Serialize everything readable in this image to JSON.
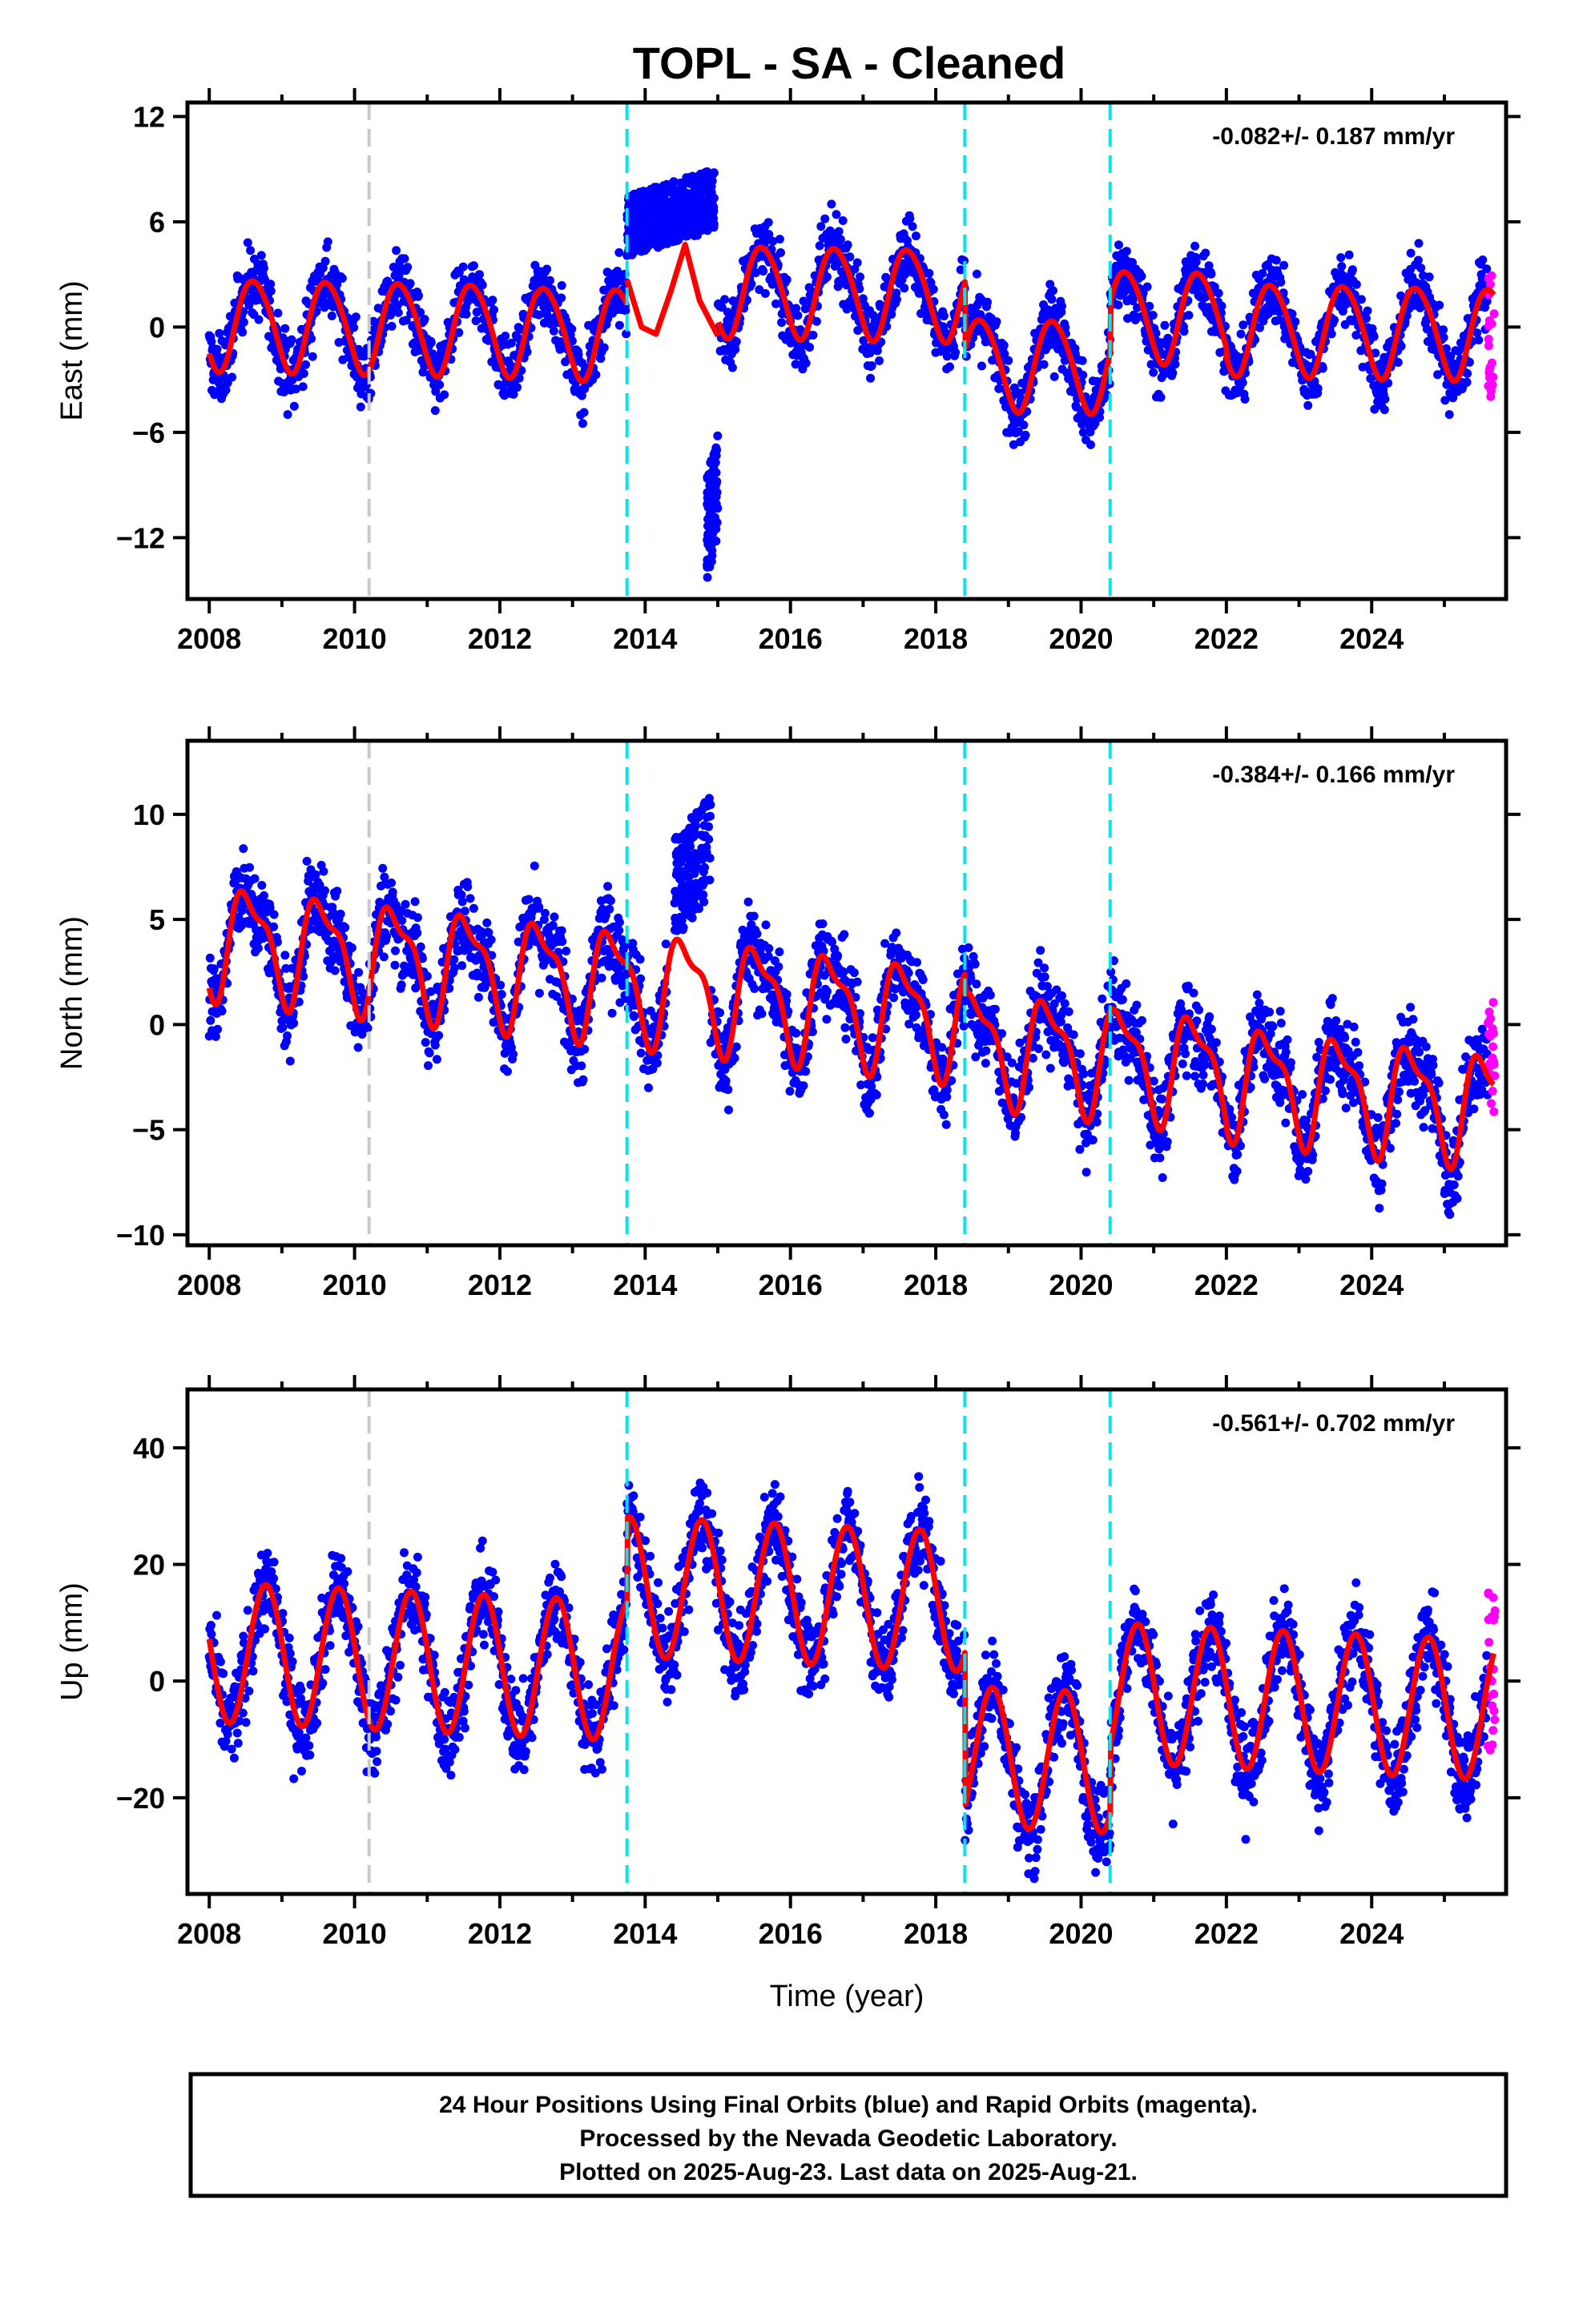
{
  "title": "TOPL  - SA - Cleaned",
  "footer": {
    "lines": [
      "24 Hour Positions Using Final Orbits (blue) and Rapid Orbits (magenta).",
      "Processed by the Nevada Geodetic Laboratory.",
      "Plotted on 2025-Aug-23. Last data on 2025-Aug-21."
    ]
  },
  "colors": {
    "final": "#0000ff",
    "rapid": "#ff00ff",
    "model": "#ff0000",
    "equipment_change": "#c8c8c8",
    "event": "#00e5ee"
  },
  "chart_data": [
    {
      "type": "scatter",
      "name": "east",
      "ylabel": "East (mm)",
      "xlabel": "",
      "rate": "-0.082+/- 0.187 mm/yr",
      "xlim": [
        2007.7,
        2025.85
      ],
      "ylim": [
        -15.5,
        12.8
      ],
      "yticks": [
        -12,
        -6,
        0,
        6,
        12
      ],
      "yticklabels": [
        "−12",
        "−6",
        "0",
        "6",
        "12"
      ],
      "xticks": [
        2008,
        2010,
        2012,
        2014,
        2016,
        2018,
        2020,
        2022,
        2024
      ],
      "xticklabels": [
        "2008",
        "2010",
        "2012",
        "2014",
        "2016",
        "2018",
        "2020",
        "2022",
        "2024"
      ],
      "grey_lines": [
        2010.2
      ],
      "cyan_lines": [
        2013.75,
        2018.4,
        2020.4
      ],
      "model": {
        "amplitude": 2.6,
        "phase_year": 0.62,
        "semiannual": 0.25,
        "trend": -0.082,
        "ref_year": 2016.8,
        "offsets": [
          [
            2008.0,
            -0.5
          ],
          [
            2012.5,
            -0.6
          ],
          [
            2013.75,
            2.0
          ],
          [
            2018.4,
            -1.9
          ],
          [
            2020.4,
            1.0
          ],
          [
            2022.0,
            0.4
          ]
        ]
      },
      "gap": [
        2013.75,
        2015.0
      ],
      "gap_curve": [
        [
          2013.75,
          2.7
        ],
        [
          2013.95,
          0.0
        ],
        [
          2014.15,
          -0.4
        ],
        [
          2014.35,
          2.0
        ],
        [
          2014.55,
          4.7
        ],
        [
          2014.75,
          1.5
        ],
        [
          2015.0,
          -0.5
        ]
      ],
      "clusters": [
        {
          "x": [
            2013.75,
            2014.95
          ],
          "y": [
            4.0,
            9.0
          ],
          "n": 520
        },
        {
          "x": [
            2014.85,
            2015.0
          ],
          "y": [
            -14.5,
            -6.0
          ],
          "n": 90
        }
      ],
      "noise": 1.4,
      "rapid": {
        "x": [
          2025.6,
          2025.7
        ],
        "y": [
          -4.0,
          3.0
        ]
      }
    },
    {
      "type": "scatter",
      "name": "north",
      "ylabel": "North (mm)",
      "xlabel": "",
      "rate": "-0.384+/- 0.166 mm/yr",
      "xlim": [
        2007.7,
        2025.85
      ],
      "ylim": [
        -10.5,
        13.5
      ],
      "yticks": [
        -10,
        -5,
        0,
        5,
        10
      ],
      "yticklabels": [
        "−10",
        "−5",
        "0",
        "5",
        "10"
      ],
      "xticks": [
        2008,
        2010,
        2012,
        2014,
        2016,
        2018,
        2020,
        2022,
        2024
      ],
      "xticklabels": [
        "2008",
        "2010",
        "2012",
        "2014",
        "2016",
        "2018",
        "2020",
        "2022",
        "2024"
      ],
      "grey_lines": [
        2010.2
      ],
      "cyan_lines": [
        2013.75,
        2018.4,
        2020.4
      ],
      "model": {
        "amplitude": 2.4,
        "phase_year": 0.55,
        "semiannual": 0.9,
        "trend": -0.384,
        "ref_year": 2016.8,
        "offsets": [
          [
            2008.0,
            0.8
          ],
          [
            2013.75,
            0.8
          ],
          [
            2018.4,
            -0.2
          ],
          [
            2022.0,
            -0.5
          ]
        ]
      },
      "gap": [
        2014.3,
        2014.9
      ],
      "gap_curve": [],
      "clusters": [
        {
          "x": [
            2014.4,
            2014.9
          ],
          "y": [
            4.0,
            11.0
          ],
          "n": 160
        }
      ],
      "noise": 1.5,
      "rapid": {
        "x": [
          2025.6,
          2025.7
        ],
        "y": [
          -4.5,
          1.5
        ]
      }
    },
    {
      "type": "scatter",
      "name": "up",
      "ylabel": "Up (mm)",
      "xlabel": "Time (year)",
      "rate": "-0.561+/- 0.702 mm/yr",
      "xlim": [
        2007.7,
        2025.85
      ],
      "ylim": [
        -36.5,
        50.0
      ],
      "yticks": [
        -20,
        0,
        20,
        40
      ],
      "yticklabels": [
        "−20",
        "0",
        "20",
        "40"
      ],
      "xticks": [
        2008,
        2010,
        2012,
        2014,
        2016,
        2018,
        2020,
        2022,
        2024
      ],
      "xticklabels": [
        "2008",
        "2010",
        "2012",
        "2014",
        "2016",
        "2018",
        "2020",
        "2022",
        "2024"
      ],
      "grey_lines": [
        2010.2
      ],
      "cyan_lines": [
        2013.75,
        2018.4,
        2020.4
      ],
      "model": {
        "amplitude": 12.0,
        "phase_year": 0.78,
        "semiannual": 0.0,
        "trend": -0.561,
        "ref_year": 2016.8,
        "offsets": [
          [
            2008.0,
            0.0
          ],
          [
            2013.75,
            14.5
          ],
          [
            2018.4,
            -12.0
          ],
          [
            2020.4,
            0.0
          ]
        ]
      },
      "gap": [
        0,
        0
      ],
      "gap_curve": [],
      "clusters": [],
      "noise": 5.5,
      "rapid": {
        "x": [
          2025.6,
          2025.7
        ],
        "y": [
          -15.0,
          16.0
        ]
      }
    }
  ]
}
